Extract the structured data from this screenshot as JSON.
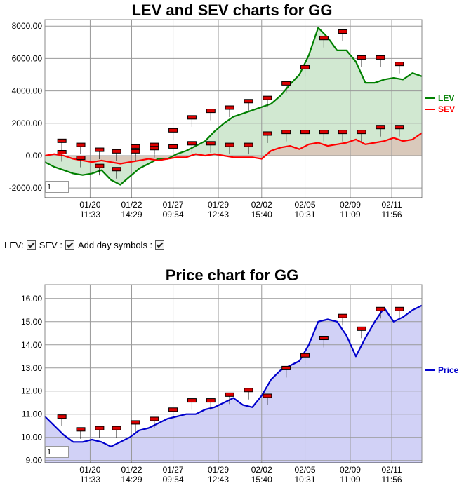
{
  "lev_chart": {
    "title": "LEV and SEV charts for GG",
    "zoom_value": "1",
    "legend": [
      {
        "label": "LEV",
        "color": "#008000"
      },
      {
        "label": "SEV",
        "color": "#ff0000"
      }
    ]
  },
  "controls": {
    "lev_label": "LEV:",
    "sev_label": "SEV :",
    "day_symbols_label": "Add day symbols :",
    "lev_checked": true,
    "sev_checked": true,
    "day_symbols_checked": true
  },
  "price_chart": {
    "title": "Price chart for GG",
    "zoom_value": "1",
    "legend": [
      {
        "label": "Price",
        "color": "#0000cc"
      }
    ]
  },
  "chart_data": [
    {
      "type": "area",
      "title": "LEV and SEV charts for GG",
      "ylim": [
        -2600,
        8400
      ],
      "yticks": [
        "8000.00",
        "6000.00",
        "4000.00",
        "2000.00",
        "0.00",
        "-2000.00"
      ],
      "ytick_values": [
        8000,
        6000,
        4000,
        2000,
        0,
        -2000
      ],
      "xlim": [
        0,
        20
      ],
      "xticks": [
        {
          "t": 2.4,
          "date": "01/20",
          "time": "11:33"
        },
        {
          "t": 4.6,
          "date": "01/22",
          "time": "14:29"
        },
        {
          "t": 6.8,
          "date": "01/27",
          "time": "09:54"
        },
        {
          "t": 9.2,
          "date": "01/29",
          "time": "12:43"
        },
        {
          "t": 11.5,
          "date": "02/02",
          "time": "15:40"
        },
        {
          "t": 13.8,
          "date": "02/05",
          "time": "10:31"
        },
        {
          "t": 16.2,
          "date": "02/09",
          "time": "11:09"
        },
        {
          "t": 18.4,
          "date": "02/11",
          "time": "11:56"
        }
      ],
      "grid": true,
      "legend_position": "right",
      "series": [
        {
          "name": "LEV",
          "color": "#008000",
          "fill": "#cce5cc",
          "x": [
            0,
            0.5,
            1,
            1.5,
            2,
            2.5,
            3,
            3.5,
            4,
            4.5,
            5,
            5.5,
            6,
            6.5,
            7,
            7.5,
            8,
            8.5,
            9,
            9.5,
            10,
            10.5,
            11,
            11.5,
            12,
            12.5,
            13,
            13.5,
            14,
            14.5,
            15,
            15.5,
            16,
            16.5,
            17,
            17.5,
            18,
            18.5,
            19,
            19.5,
            20
          ],
          "y": [
            -400,
            -700,
            -900,
            -1100,
            -1200,
            -1100,
            -900,
            -1500,
            -1800,
            -1300,
            -800,
            -500,
            -200,
            -200,
            100,
            300,
            600,
            900,
            1500,
            2000,
            2400,
            2600,
            2800,
            3000,
            3200,
            3700,
            4400,
            5000,
            6200,
            7900,
            7300,
            6500,
            6500,
            5800,
            4500,
            4500,
            4700,
            4800,
            4700,
            5100,
            4900
          ]
        },
        {
          "name": "SEV",
          "color": "#ff0000",
          "fill": "#d9c5b8",
          "x": [
            0,
            0.5,
            1,
            1.5,
            2,
            2.5,
            3,
            3.5,
            4,
            4.5,
            5,
            5.5,
            6,
            6.5,
            7,
            7.5,
            8,
            8.5,
            9,
            9.5,
            10,
            10.5,
            11,
            11.5,
            12,
            12.5,
            13,
            13.5,
            14,
            14.5,
            15,
            15.5,
            16,
            16.5,
            17,
            17.5,
            18,
            18.5,
            19,
            19.5,
            20
          ],
          "y": [
            0,
            100,
            0,
            -200,
            -300,
            -400,
            -300,
            -400,
            -500,
            -400,
            -300,
            -200,
            -300,
            -200,
            -100,
            -100,
            100,
            0,
            100,
            0,
            -100,
            -100,
            -100,
            -200,
            300,
            500,
            600,
            400,
            700,
            800,
            600,
            700,
            800,
            1000,
            700,
            800,
            900,
            1100,
            900,
            1000,
            1400
          ]
        }
      ],
      "day_markers": [
        {
          "t": 0.9,
          "v": 850
        },
        {
          "t": 1.9,
          "v": 600
        },
        {
          "t": 2.9,
          "v": 300
        },
        {
          "t": 3.8,
          "v": 200
        },
        {
          "t": 4.8,
          "v": 500
        },
        {
          "t": 5.8,
          "v": 600
        },
        {
          "t": 6.8,
          "v": 1500
        },
        {
          "t": 7.8,
          "v": 2300
        },
        {
          "t": 8.8,
          "v": 2700
        },
        {
          "t": 9.8,
          "v": 2900
        },
        {
          "t": 10.8,
          "v": 3300
        },
        {
          "t": 11.8,
          "v": 3500
        },
        {
          "t": 12.8,
          "v": 4400
        },
        {
          "t": 13.8,
          "v": 5400
        },
        {
          "t": 14.8,
          "v": 7200
        },
        {
          "t": 15.8,
          "v": 7600
        },
        {
          "t": 16.8,
          "v": 6000
        },
        {
          "t": 17.8,
          "v": 6000
        },
        {
          "t": 18.8,
          "v": 5600
        },
        {
          "t": 0.9,
          "v": 150
        },
        {
          "t": 1.9,
          "v": -200
        },
        {
          "t": 2.9,
          "v": -700
        },
        {
          "t": 3.8,
          "v": -900
        },
        {
          "t": 4.8,
          "v": 200
        },
        {
          "t": 5.8,
          "v": 400
        },
        {
          "t": 6.8,
          "v": 500
        },
        {
          "t": 7.8,
          "v": 700
        },
        {
          "t": 8.8,
          "v": 700
        },
        {
          "t": 9.8,
          "v": 600
        },
        {
          "t": 10.8,
          "v": 600
        },
        {
          "t": 11.8,
          "v": 1300
        },
        {
          "t": 12.8,
          "v": 1400
        },
        {
          "t": 13.8,
          "v": 1400
        },
        {
          "t": 14.8,
          "v": 1400
        },
        {
          "t": 15.8,
          "v": 1400
        },
        {
          "t": 16.8,
          "v": 1400
        },
        {
          "t": 17.8,
          "v": 1700
        },
        {
          "t": 18.8,
          "v": 1700
        }
      ]
    },
    {
      "type": "area",
      "title": "Price chart for GG",
      "ylim": [
        8.9,
        16.6
      ],
      "yticks": [
        "16.00",
        "15.00",
        "14.00",
        "13.00",
        "12.00",
        "11.00",
        "10.00",
        "9.00"
      ],
      "ytick_values": [
        16,
        15,
        14,
        13,
        12,
        11,
        10,
        9
      ],
      "xlim": [
        0,
        20
      ],
      "xticks": [
        {
          "t": 2.4,
          "date": "01/20",
          "time": "11:33"
        },
        {
          "t": 4.6,
          "date": "01/22",
          "time": "14:29"
        },
        {
          "t": 6.8,
          "date": "01/27",
          "time": "09:54"
        },
        {
          "t": 9.2,
          "date": "01/29",
          "time": "12:43"
        },
        {
          "t": 11.5,
          "date": "02/02",
          "time": "15:40"
        },
        {
          "t": 13.8,
          "date": "02/05",
          "time": "10:31"
        },
        {
          "t": 16.2,
          "date": "02/09",
          "time": "11:09"
        },
        {
          "t": 18.4,
          "date": "02/11",
          "time": "11:56"
        }
      ],
      "grid": true,
      "legend_position": "right",
      "series": [
        {
          "name": "Price",
          "color": "#0000cc",
          "fill": "#ccccf5",
          "x": [
            0,
            0.5,
            1,
            1.5,
            2,
            2.5,
            3,
            3.5,
            4,
            4.5,
            5,
            5.5,
            6,
            6.5,
            7,
            7.5,
            8,
            8.5,
            9,
            9.5,
            10,
            10.5,
            11,
            11.5,
            12,
            12.5,
            13,
            13.5,
            14,
            14.5,
            15,
            15.5,
            16,
            16.5,
            17,
            17.5,
            18,
            18.5,
            19,
            19.5,
            20
          ],
          "y": [
            10.9,
            10.5,
            10.1,
            9.8,
            9.8,
            9.9,
            9.8,
            9.6,
            9.8,
            10.0,
            10.3,
            10.4,
            10.6,
            10.8,
            10.9,
            11.0,
            11.0,
            11.2,
            11.3,
            11.5,
            11.7,
            11.4,
            11.3,
            11.8,
            12.5,
            12.9,
            13.1,
            13.3,
            14.0,
            15.0,
            15.1,
            15.0,
            14.4,
            13.5,
            14.3,
            15.0,
            15.6,
            15.0,
            15.2,
            15.5,
            15.7
          ]
        }
      ],
      "day_markers": [
        {
          "t": 0.9,
          "v": 10.85
        },
        {
          "t": 1.9,
          "v": 10.3
        },
        {
          "t": 2.9,
          "v": 10.35
        },
        {
          "t": 3.8,
          "v": 10.35
        },
        {
          "t": 4.8,
          "v": 10.6
        },
        {
          "t": 5.8,
          "v": 10.75
        },
        {
          "t": 6.8,
          "v": 11.15
        },
        {
          "t": 7.8,
          "v": 11.55
        },
        {
          "t": 8.8,
          "v": 11.55
        },
        {
          "t": 9.8,
          "v": 11.8
        },
        {
          "t": 10.8,
          "v": 12.0
        },
        {
          "t": 11.8,
          "v": 11.75
        },
        {
          "t": 12.8,
          "v": 12.95
        },
        {
          "t": 13.8,
          "v": 13.5
        },
        {
          "t": 14.8,
          "v": 14.25
        },
        {
          "t": 15.8,
          "v": 15.2
        },
        {
          "t": 16.8,
          "v": 14.65
        },
        {
          "t": 17.8,
          "v": 15.5
        },
        {
          "t": 18.8,
          "v": 15.5
        }
      ]
    }
  ]
}
